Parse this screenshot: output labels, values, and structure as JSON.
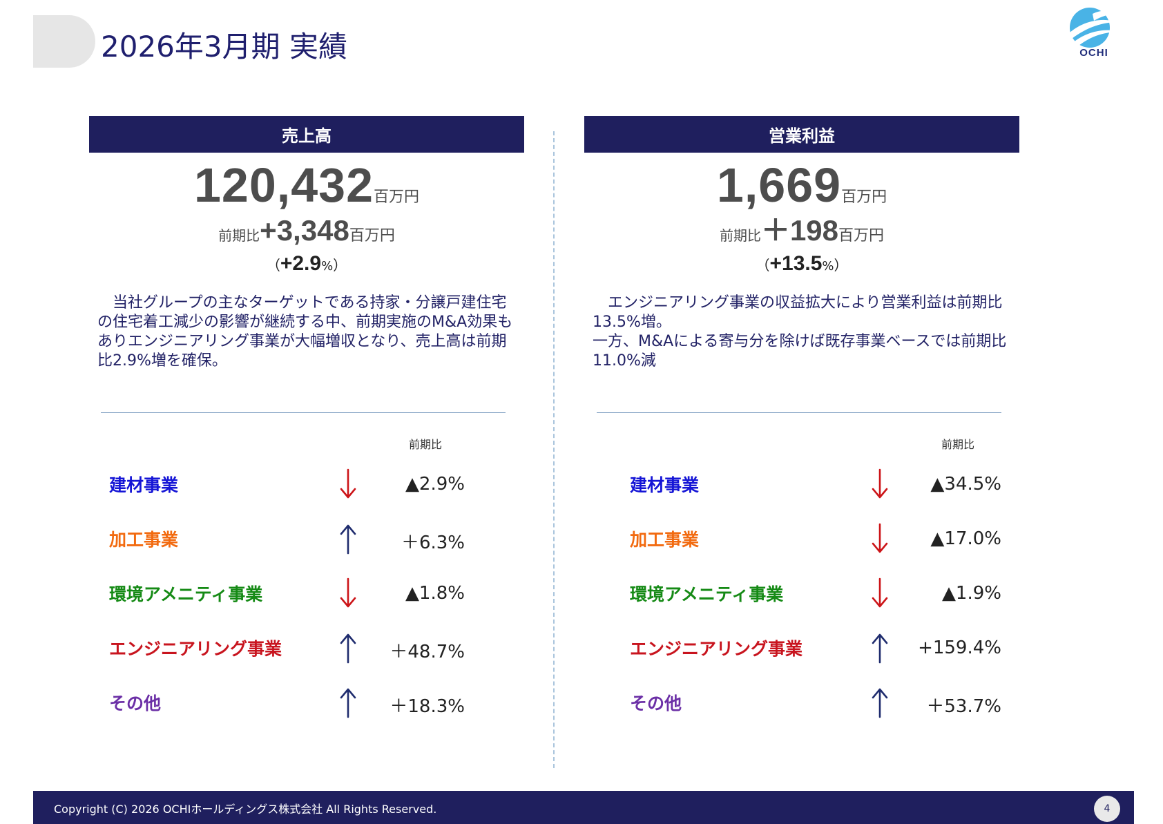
{
  "page": {
    "title": "2026年3月期 実績",
    "page_number": "4"
  },
  "logo": {
    "text": "OCHI"
  },
  "sales": {
    "header": "売上高",
    "value": "120,432",
    "unit": "百万円",
    "yoy_label": "前期比",
    "yoy_value": "+3,348",
    "yoy_unit": "百万円",
    "pct_open": "（",
    "pct_value": "+2.9",
    "pct_sign": "%",
    "pct_close": "）",
    "description": "　当社グループの主なターゲットである持家・分譲戸建住宅\nの住宅着工減少の影響が継続する中、前期実施のM&A効果も\nありエンジニアリング事業が大幅増収となり、売上高は前期\n比2.9%増を確保。",
    "column_header": "前期比",
    "segments": [
      {
        "name": "建材事業",
        "color": "#1515d6",
        "direction": "down",
        "value": "▲2.9%"
      },
      {
        "name": "加工事業",
        "color": "#f26a0f",
        "direction": "up",
        "value": "＋6.3%"
      },
      {
        "name": "環境アメニティ事業",
        "color": "#158a15",
        "direction": "down",
        "value": "▲1.8%"
      },
      {
        "name": "エンジニアリング事業",
        "color": "#c8141e",
        "direction": "up",
        "value": "＋48.7%"
      },
      {
        "name": "その他",
        "color": "#6b2fa6",
        "direction": "up",
        "value": "＋18.3%"
      }
    ]
  },
  "profit": {
    "header": "営業利益",
    "value": "1,669",
    "unit": "百万円",
    "yoy_label": "前期比",
    "yoy_value": "＋198",
    "yoy_unit": "百万円",
    "pct_open": "（",
    "pct_value": "+13.5",
    "pct_sign": "%",
    "pct_close": "）",
    "description": "　エンジニアリング事業の収益拡大により営業利益は前期比\n13.5%増。\n一方、M&Aによる寄与分を除けば既存事業ベースでは前期比\n11.0%減",
    "column_header": "前期比",
    "segments": [
      {
        "name": "建材事業",
        "color": "#1515d6",
        "direction": "down",
        "value": "▲34.5%"
      },
      {
        "name": "加工事業",
        "color": "#f26a0f",
        "direction": "down",
        "value": "▲17.0%"
      },
      {
        "name": "環境アメニティ事業",
        "color": "#158a15",
        "direction": "down",
        "value": "▲1.9%"
      },
      {
        "name": "エンジニアリング事業",
        "color": "#c8141e",
        "direction": "up",
        "value": "+159.4%"
      },
      {
        "name": "その他",
        "color": "#6b2fa6",
        "direction": "up",
        "value": "＋53.7%"
      }
    ]
  },
  "colors": {
    "arrow_up": "#1f2c6e",
    "arrow_down": "#cc1418"
  },
  "footer": {
    "copyright": "Copyright (C) 2026 OCHIホールディングス株式会社 All Rights Reserved."
  }
}
